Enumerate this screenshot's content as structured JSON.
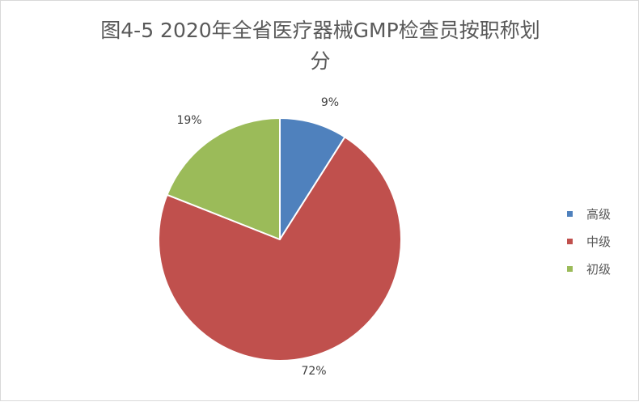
{
  "chart_data": {
    "type": "pie",
    "title_lines": [
      "图4-5  2020年全省医疗器械GMP检查员按职称划",
      "分"
    ],
    "categories": [
      "高级",
      "中级",
      "初级"
    ],
    "values": [
      9,
      72,
      19
    ],
    "data_labels": [
      "9%",
      "72%",
      "19%"
    ],
    "colors": [
      "#4f81bd",
      "#c0504d",
      "#9bbb59"
    ],
    "legend_position": "right",
    "start_angle": "12 o'clock, clockwise"
  }
}
